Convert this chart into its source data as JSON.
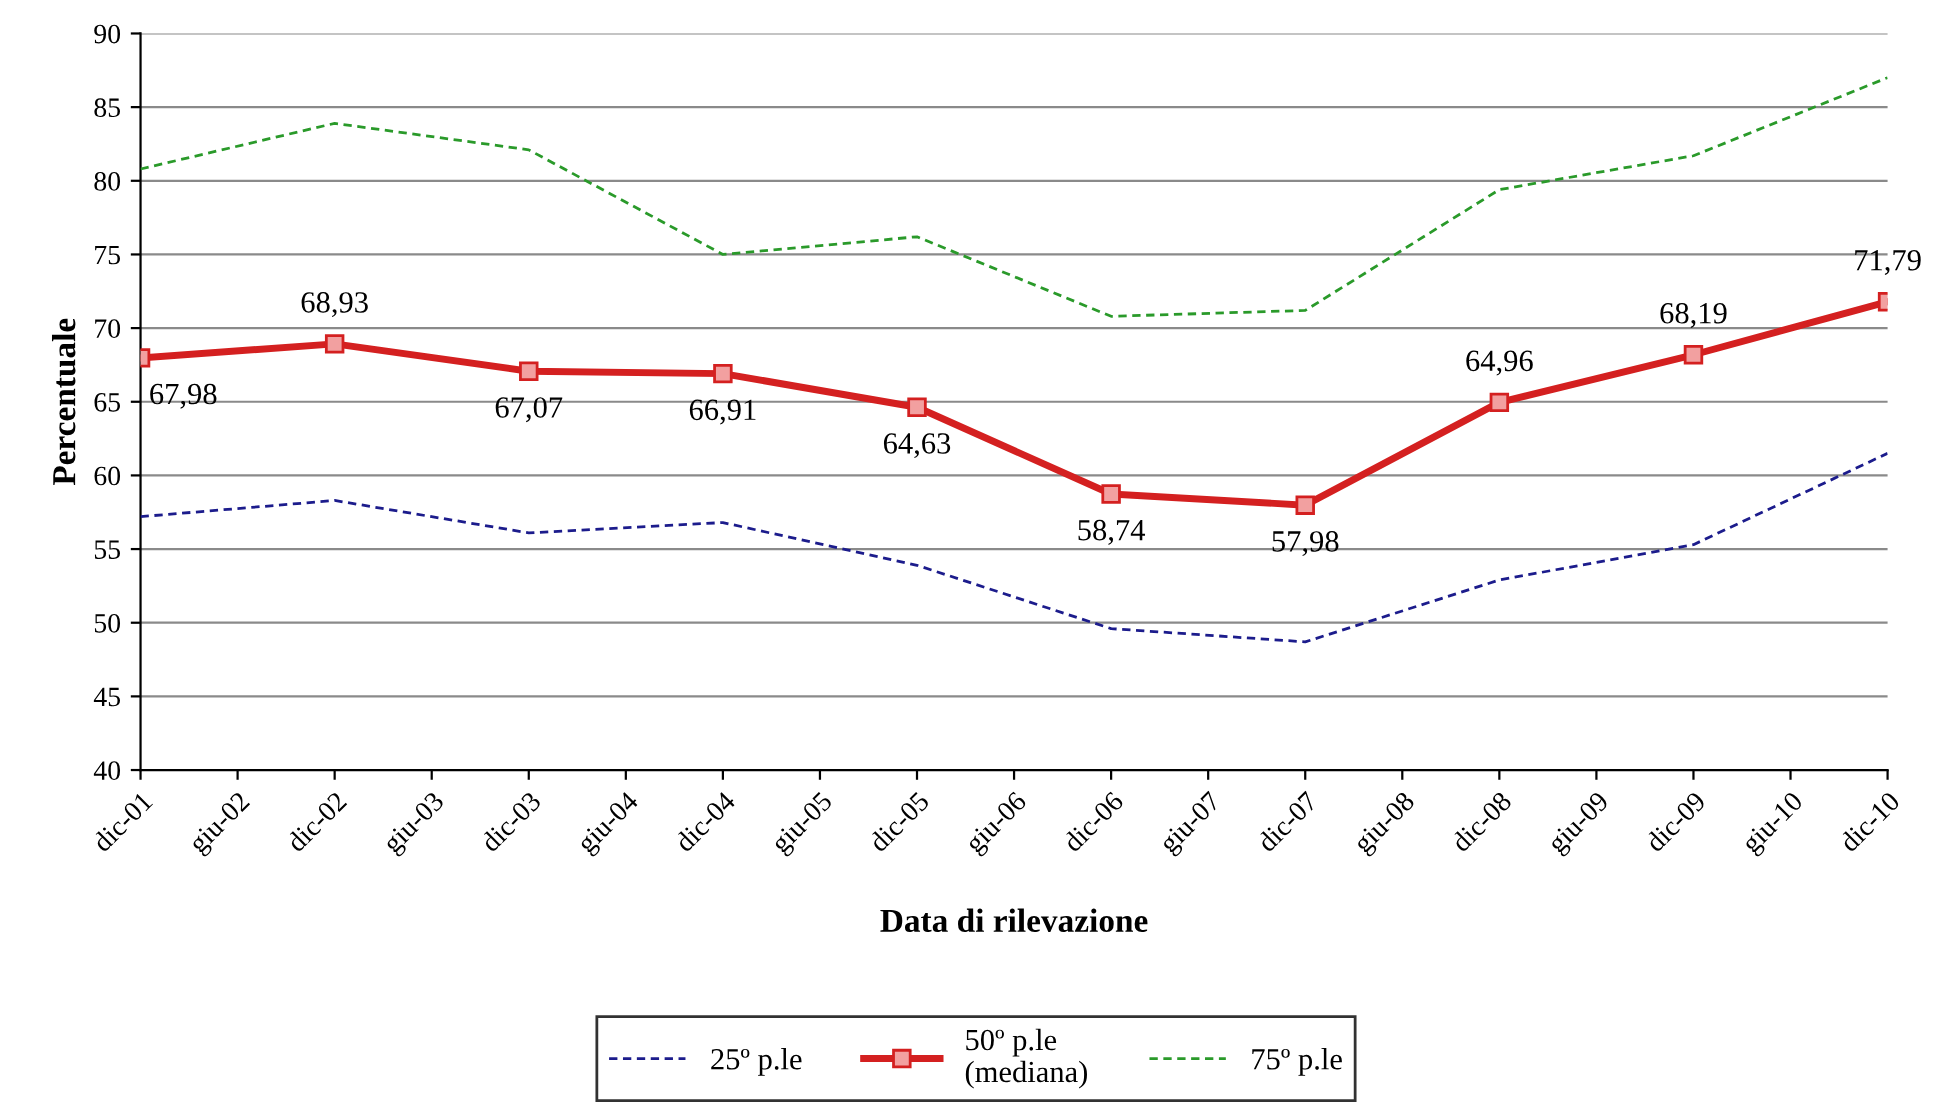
{
  "chart_data": {
    "type": "line",
    "xlabel": "Data di rilevazione",
    "ylabel": "Percentuale",
    "categories": [
      "dic-01",
      "giu-02",
      "dic-02",
      "giu-03",
      "dic-03",
      "giu-04",
      "dic-04",
      "giu-05",
      "dic-05",
      "giu-06",
      "dic-06",
      "giu-07",
      "dic-07",
      "giu-08",
      "dic-08",
      "giu-09",
      "dic-09",
      "giu-10",
      "dic-10"
    ],
    "ylim": [
      40,
      90
    ],
    "yticks": [
      40,
      45,
      50,
      55,
      60,
      65,
      70,
      75,
      80,
      85,
      90
    ],
    "grid": "y",
    "legend": "bottom",
    "series": [
      {
        "name": "25º p.le",
        "color": "#1c1c8c",
        "line_style": "dashed",
        "marker": "none",
        "values": [
          57.2,
          null,
          58.3,
          null,
          56.1,
          null,
          56.8,
          null,
          53.9,
          null,
          49.6,
          null,
          48.7,
          null,
          52.9,
          null,
          55.3,
          null,
          61.5
        ]
      },
      {
        "name": "50º p.le\n(mediana)",
        "color": "#d42020",
        "line_style": "solid",
        "marker": "square",
        "values": [
          67.98,
          null,
          68.93,
          null,
          67.07,
          null,
          66.91,
          null,
          64.63,
          null,
          58.74,
          null,
          57.98,
          null,
          64.96,
          null,
          68.19,
          null,
          71.79
        ],
        "value_labels": [
          "67,98",
          null,
          "68,93",
          null,
          "67,07",
          null,
          "66,91",
          null,
          "64,63",
          null,
          "58,74",
          null,
          "57,98",
          null,
          "64,96",
          null,
          "68,19",
          null,
          "71,79"
        ]
      },
      {
        "name": "75º p.le",
        "color": "#2a9a2a",
        "line_style": "dashed",
        "marker": "none",
        "values": [
          80.8,
          null,
          83.9,
          null,
          82.1,
          null,
          75.0,
          null,
          76.2,
          null,
          70.8,
          null,
          71.2,
          null,
          79.4,
          null,
          81.7,
          null,
          87.0
        ]
      }
    ]
  }
}
